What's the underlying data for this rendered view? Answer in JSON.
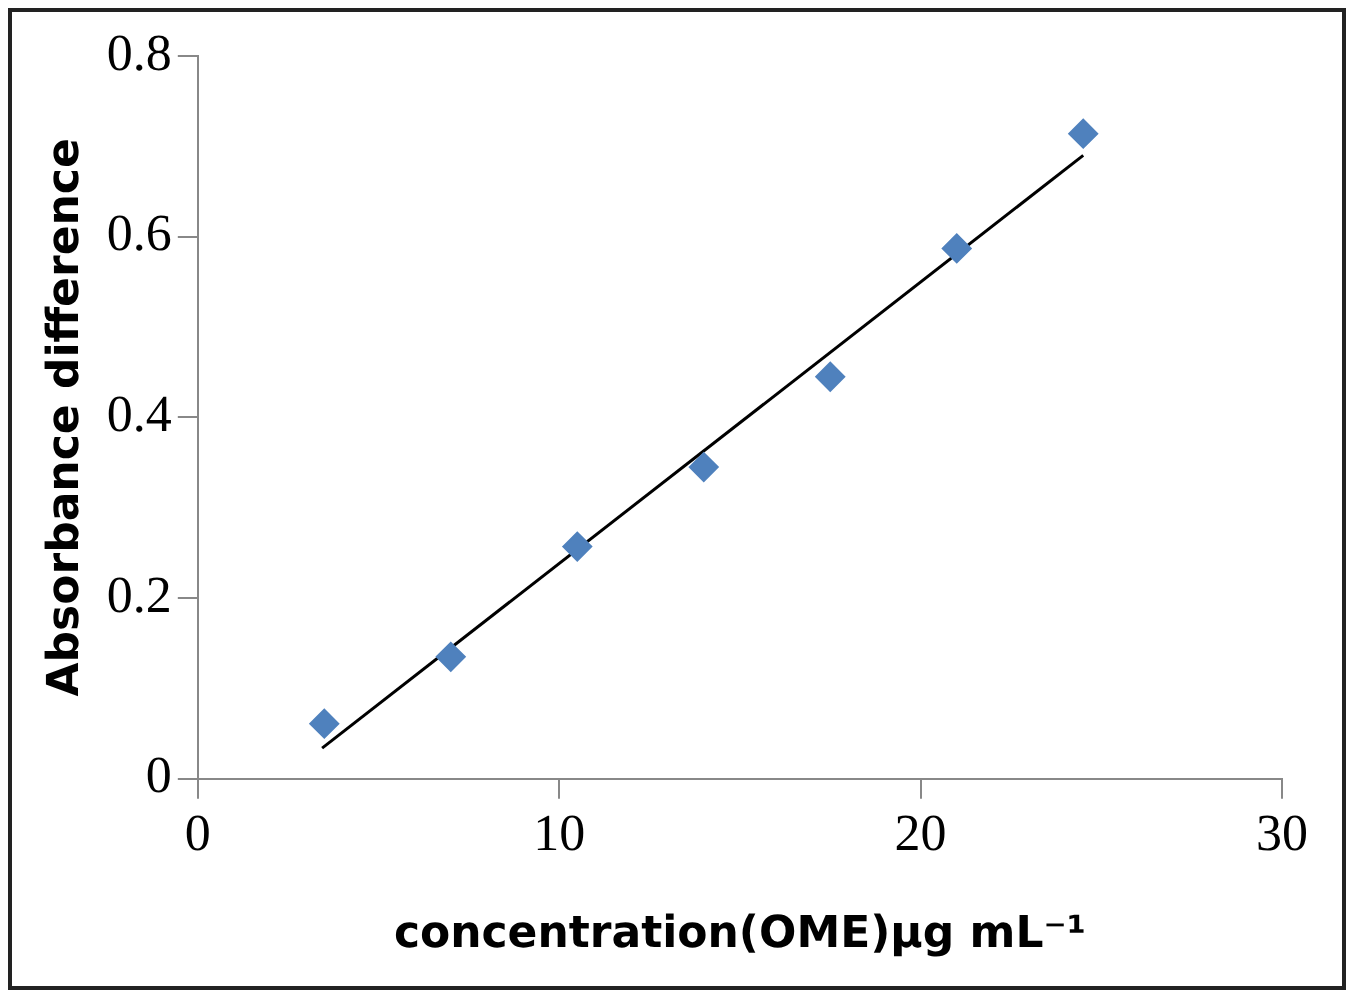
{
  "chart_data": {
    "type": "scatter",
    "xlabel": "concentration(OME)μg mL⁻¹",
    "ylabel": "Absorbance difference",
    "x": [
      3.5,
      7,
      10.5,
      14,
      17.5,
      21,
      24.5
    ],
    "series": [
      {
        "type": "scatter",
        "color": "#4f81bd",
        "values": [
          0.061,
          0.135,
          0.257,
          0.345,
          0.445,
          0.587,
          0.714
        ],
        "marker": "diamond"
      },
      {
        "type": "line",
        "color": "#000000",
        "x": [
          3.44,
          24.5
        ],
        "values": [
          0.034,
          0.69
        ],
        "marker": "none",
        "line_style": "solid"
      }
    ],
    "xlim": [
      0,
      30
    ],
    "xticks": [
      0,
      10,
      20,
      30
    ],
    "ylim": [
      0,
      0.8
    ],
    "yticks": [
      0,
      0.2,
      0.4,
      0.6,
      0.8
    ],
    "grid": false,
    "legend": false
  }
}
